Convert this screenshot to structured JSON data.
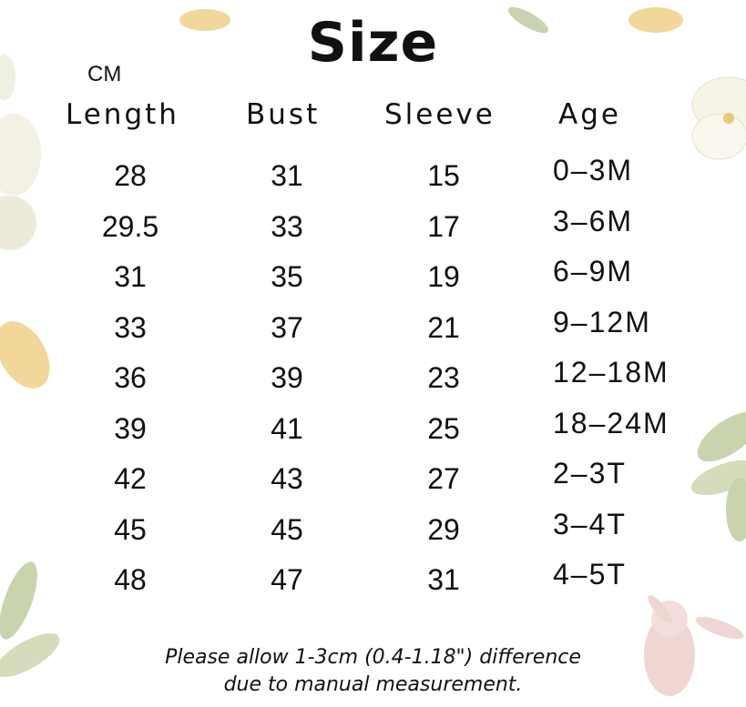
{
  "title": "Size",
  "unit": "CM",
  "columns": [
    "Length",
    "Bust",
    "Sleeve",
    "Age"
  ],
  "rows": [
    [
      "28",
      "31",
      "15",
      "0–3M"
    ],
    [
      "29.5",
      "33",
      "17",
      "3–6M"
    ],
    [
      "31",
      "35",
      "19",
      "6–9M"
    ],
    [
      "33",
      "37",
      "21",
      "9–12M"
    ],
    [
      "36",
      "39",
      "23",
      "12–18M"
    ],
    [
      "39",
      "41",
      "25",
      "18–24M"
    ],
    [
      "42",
      "43",
      "27",
      "2–3T"
    ],
    [
      "45",
      "45",
      "29",
      "3–4T"
    ],
    [
      "48",
      "47",
      "31",
      "4–5T"
    ]
  ],
  "note_line1": "Please allow 1-3cm (0.4-1.18\") difference",
  "note_line2": "due to manual measurement.",
  "colors": {
    "text": "#111111",
    "leaf": "#c9d3ae",
    "petal": "#f7f3e6",
    "yellow": "#f1d89a",
    "bunny": "#f0d6d3"
  }
}
